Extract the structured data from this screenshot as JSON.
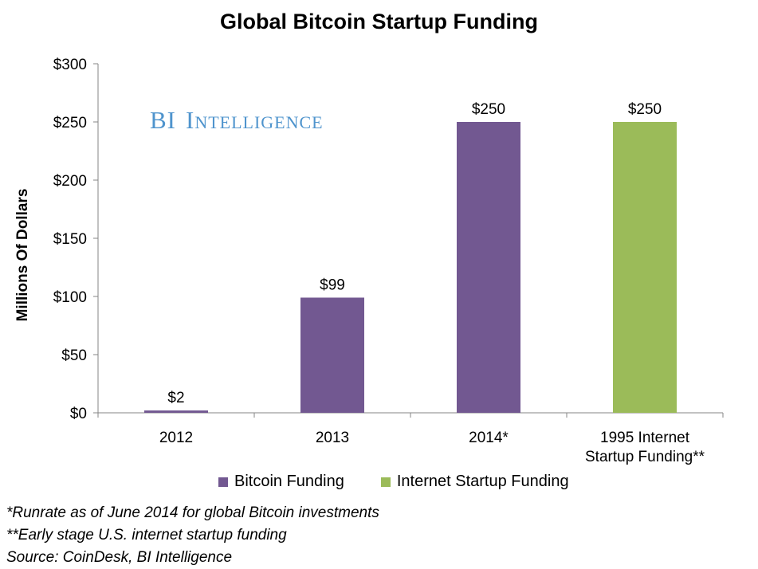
{
  "chart_data": {
    "type": "bar",
    "title": "Global Bitcoin Startup Funding",
    "ylabel": "Millions Of Dollars",
    "xlabel": "",
    "ylim": [
      0,
      300
    ],
    "ytick_values": [
      0,
      50,
      100,
      150,
      200,
      250,
      300
    ],
    "ytick_labels": [
      "$0",
      "$50",
      "$100",
      "$150",
      "$200",
      "$250",
      "$300"
    ],
    "categories": [
      [
        "2012"
      ],
      [
        "2013"
      ],
      [
        "2014*"
      ],
      [
        "1995 Internet",
        "Startup Funding**"
      ]
    ],
    "values": [
      2,
      99,
      250,
      250
    ],
    "data_labels": [
      "$2",
      "$99",
      "$250",
      "$250"
    ],
    "bar_series": [
      "Bitcoin Funding",
      "Bitcoin Funding",
      "Bitcoin Funding",
      "Internet Startup Funding"
    ],
    "legend": [
      {
        "name": "Bitcoin Funding",
        "color": "#725891"
      },
      {
        "name": "Internet Startup Funding",
        "color": "#9bbb59"
      }
    ],
    "legend_position": "bottom",
    "grid": false
  },
  "watermark": {
    "text_first": "BI",
    "text_rest": "Intelligence",
    "color": "#4f94cd"
  },
  "notes": [
    "*Runrate as of June 2014 for global Bitcoin investments",
    "**Early stage U.S. internet startup funding",
    "Source: CoinDesk, BI Intelligence"
  ]
}
